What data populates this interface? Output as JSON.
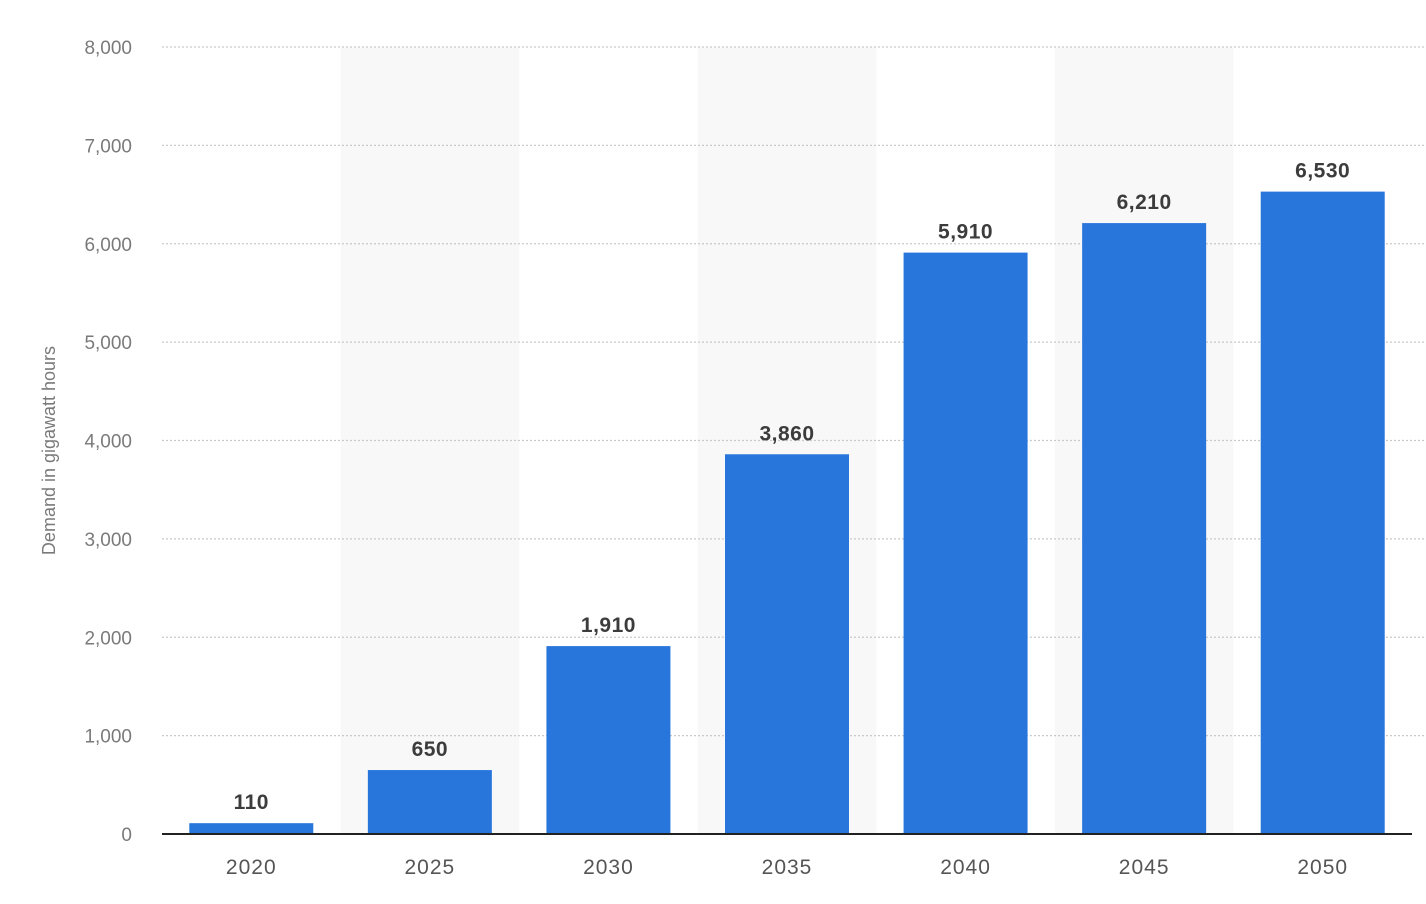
{
  "chart_data": {
    "type": "bar",
    "title": "",
    "xlabel": "",
    "ylabel": "Demand in gigawatt hours",
    "categories": [
      "2020",
      "2025",
      "2030",
      "2035",
      "2040",
      "2045",
      "2050"
    ],
    "values": [
      110,
      650,
      1910,
      3860,
      5910,
      6210,
      6530
    ],
    "value_labels": [
      "110",
      "650",
      "1,910",
      "3,860",
      "5,910",
      "6,210",
      "6,530"
    ],
    "ylim": [
      0,
      8000
    ],
    "yticks": [
      0,
      1000,
      2000,
      3000,
      4000,
      5000,
      6000,
      7000,
      8000
    ],
    "ytick_labels": [
      "0",
      "1,000",
      "2,000",
      "3,000",
      "4,000",
      "5,000",
      "6,000",
      "7,000",
      "8,000"
    ],
    "grid": true,
    "alternating_column_bands": true,
    "colors": {
      "bar": "#2875dc",
      "band": "#f8f8f8",
      "grid": "#c9c9c9",
      "axis": "#222222"
    }
  }
}
